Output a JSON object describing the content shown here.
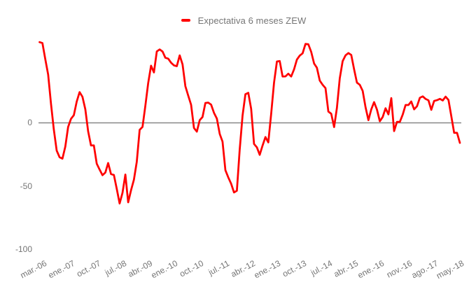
{
  "legend": {
    "label": "Expectativa 6 meses ZEW"
  },
  "colors": {
    "series": "#ff0000",
    "baseline": "#888888",
    "tick_text": "#757575",
    "legend_text": "#757575",
    "background": "#ffffff"
  },
  "chart_data": {
    "type": "line",
    "title": "",
    "legend_position": "top",
    "frequency": "monthly",
    "x_start": "mar.-06",
    "x_end": "jun.-18",
    "grid": "baseline only",
    "baseline_value": 0,
    "ylim": [
      -100,
      75
    ],
    "y_ticks": [
      0,
      -50,
      -100
    ],
    "y_tick_labels": [
      "0",
      "-50",
      "-100"
    ],
    "x_tick_labels": [
      {
        "label": "mar.-06",
        "index": 0
      },
      {
        "label": "ene.-07",
        "index": 10
      },
      {
        "label": "oct.-07",
        "index": 19
      },
      {
        "label": "jul.-08",
        "index": 28
      },
      {
        "label": "abr.-09",
        "index": 37
      },
      {
        "label": "ene.-10",
        "index": 46
      },
      {
        "label": "oct.-10",
        "index": 55
      },
      {
        "label": "jul.-11",
        "index": 64
      },
      {
        "label": "abr.-12",
        "index": 73
      },
      {
        "label": "ene.-13",
        "index": 82
      },
      {
        "label": "oct.-13",
        "index": 91
      },
      {
        "label": "jul.-14",
        "index": 100
      },
      {
        "label": "abr.-15",
        "index": 109
      },
      {
        "label": "ene.-16",
        "index": 118
      },
      {
        "label": "nov.-16",
        "index": 128
      },
      {
        "label": "ago.-17",
        "index": 137
      },
      {
        "label": "may.-18",
        "index": 146
      }
    ],
    "series": [
      {
        "name": "Expectativa 6 meses ZEW",
        "color": "#ff0000",
        "values": [
          63.4,
          62.7,
          50.0,
          37.8,
          15.1,
          -5.6,
          -22.2,
          -27.4,
          -28.5,
          -19.0,
          -3.6,
          2.9,
          5.8,
          16.5,
          24.0,
          20.3,
          10.4,
          -6.9,
          -18.1,
          -18.1,
          -32.5,
          -37.2,
          -41.6,
          -39.5,
          -32.0,
          -40.7,
          -41.4,
          -52.4,
          -63.9,
          -55.5,
          -41.1,
          -63.0,
          -53.5,
          -45.2,
          -31.0,
          -5.8,
          -3.5,
          13.0,
          31.1,
          44.8,
          39.5,
          56.1,
          57.7,
          56.0,
          51.1,
          50.4,
          47.2,
          45.1,
          44.5,
          53.0,
          45.8,
          28.7,
          21.2,
          14.0,
          -4.3,
          -7.2,
          1.8,
          4.3,
          15.4,
          15.7,
          14.1,
          7.6,
          3.1,
          -9.0,
          -15.1,
          -37.6,
          -43.3,
          -48.3,
          -55.2,
          -53.8,
          -21.6,
          5.4,
          22.3,
          23.4,
          10.8,
          -16.9,
          -19.6,
          -25.5,
          -18.2,
          -11.5,
          -15.7,
          6.9,
          31.5,
          48.2,
          48.5,
          36.3,
          36.4,
          38.5,
          36.3,
          42.0,
          49.6,
          52.8,
          54.6,
          62.0,
          61.7,
          55.7,
          46.6,
          43.2,
          33.1,
          29.8,
          27.1,
          8.6,
          6.9,
          -3.6,
          11.5,
          34.9,
          48.4,
          53.0,
          54.8,
          53.3,
          41.9,
          31.5,
          29.7,
          25.0,
          12.1,
          1.9,
          10.4,
          16.1,
          10.2,
          1.0,
          4.3,
          11.2,
          6.4,
          19.2,
          -6.8,
          0.5,
          0.5,
          6.2,
          13.8,
          13.8,
          16.6,
          10.4,
          12.8,
          19.5,
          20.6,
          18.6,
          17.5,
          10.0,
          17.0,
          17.6,
          18.7,
          17.4,
          20.4,
          17.8,
          5.1,
          -8.2,
          -8.2,
          -16.1
        ]
      }
    ]
  }
}
